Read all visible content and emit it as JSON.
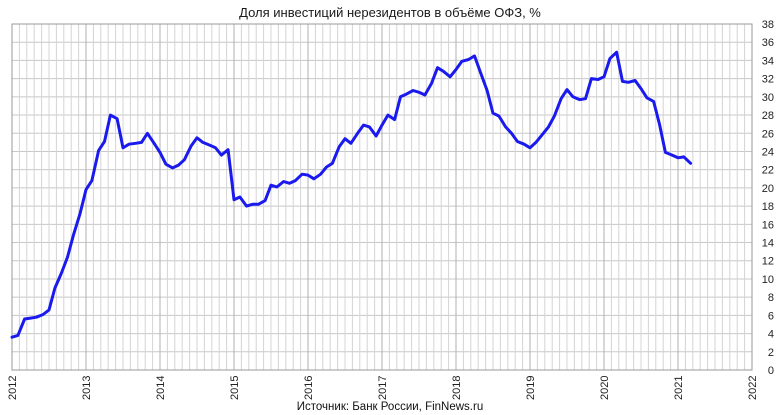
{
  "chart_data": {
    "type": "line",
    "title": "Доля инвестиций нерезидентов в объёме ОФЗ, %",
    "source": "Источник: Банк России, FinNews.ru",
    "xlabel": "",
    "ylabel": "",
    "xlim": [
      2012,
      2022
    ],
    "ylim": [
      0,
      38
    ],
    "x_ticks": [
      "2012",
      "2013",
      "2014",
      "2015",
      "2016",
      "2017",
      "2018",
      "2019",
      "2020",
      "2021",
      "2022"
    ],
    "y_ticks": [
      "0",
      "2",
      "4",
      "6",
      "8",
      "10",
      "12",
      "14",
      "16",
      "18",
      "20",
      "22",
      "24",
      "26",
      "28",
      "30",
      "32",
      "34",
      "36",
      "38"
    ],
    "grid": true,
    "y_axis_side": "right",
    "line_color": "#1a1aee",
    "series": [
      {
        "x": [
          2012.0,
          2012.08,
          2012.17,
          2012.25,
          2012.33,
          2012.42,
          2012.5,
          2012.58,
          2012.67,
          2012.75,
          2012.83,
          2012.92,
          2013.0,
          2013.08,
          2013.17,
          2013.25,
          2013.33,
          2013.42,
          2013.5,
          2013.58,
          2013.67,
          2013.75,
          2013.83,
          2013.92,
          2014.0,
          2014.08,
          2014.17,
          2014.25,
          2014.33,
          2014.42,
          2014.5,
          2014.58,
          2014.67,
          2014.75,
          2014.83,
          2014.92,
          2015.0,
          2015.08,
          2015.17,
          2015.25,
          2015.33,
          2015.42,
          2015.5,
          2015.58,
          2015.67,
          2015.75,
          2015.83,
          2015.92,
          2016.0,
          2016.08,
          2016.17,
          2016.25,
          2016.33,
          2016.42,
          2016.5,
          2016.58,
          2016.67,
          2016.75,
          2016.83,
          2016.92,
          2017.0,
          2017.08,
          2017.17,
          2017.25,
          2017.33,
          2017.42,
          2017.5,
          2017.58,
          2017.67,
          2017.75,
          2017.83,
          2017.92,
          2018.0,
          2018.08,
          2018.17,
          2018.25,
          2018.33,
          2018.42,
          2018.5,
          2018.58,
          2018.67,
          2018.75,
          2018.83,
          2018.92,
          2019.0,
          2019.08,
          2019.17,
          2019.25,
          2019.33,
          2019.42,
          2019.5,
          2019.58,
          2019.67,
          2019.75,
          2019.83,
          2019.92,
          2020.0,
          2020.08,
          2020.17,
          2020.25,
          2020.33,
          2020.42,
          2020.5,
          2020.58,
          2020.67,
          2020.75,
          2020.83,
          2020.92,
          2021.0,
          2021.08,
          2021.17
        ],
        "y": [
          3.6,
          3.8,
          5.6,
          5.7,
          5.8,
          6.1,
          6.6,
          9.0,
          10.7,
          12.4,
          14.8,
          17.2,
          19.8,
          20.8,
          24.1,
          25.1,
          28.0,
          27.6,
          24.4,
          24.8,
          24.9,
          25.0,
          26.0,
          24.9,
          23.9,
          22.6,
          22.2,
          22.5,
          23.1,
          24.6,
          25.5,
          25.0,
          24.7,
          24.4,
          23.6,
          24.2,
          18.7,
          19.0,
          18.0,
          18.2,
          18.2,
          18.6,
          20.3,
          20.1,
          20.7,
          20.5,
          20.8,
          21.5,
          21.4,
          21.0,
          21.5,
          22.3,
          22.7,
          24.5,
          25.4,
          24.9,
          26.0,
          26.9,
          26.7,
          25.7,
          26.9,
          28.0,
          27.5,
          30.0,
          30.3,
          30.7,
          30.5,
          30.2,
          31.5,
          33.2,
          32.8,
          32.2,
          33.0,
          33.9,
          34.1,
          34.5,
          32.7,
          30.7,
          28.2,
          27.9,
          26.7,
          26.0,
          25.1,
          24.8,
          24.4,
          25.0,
          25.9,
          26.7,
          27.9,
          29.8,
          30.8,
          30.0,
          29.7,
          29.8,
          32.0,
          31.9,
          32.2,
          34.2,
          34.9,
          31.7,
          31.6,
          31.8,
          30.9,
          29.9,
          29.5,
          27.0,
          23.9,
          23.6,
          23.3,
          23.4,
          22.7
        ]
      }
    ]
  }
}
